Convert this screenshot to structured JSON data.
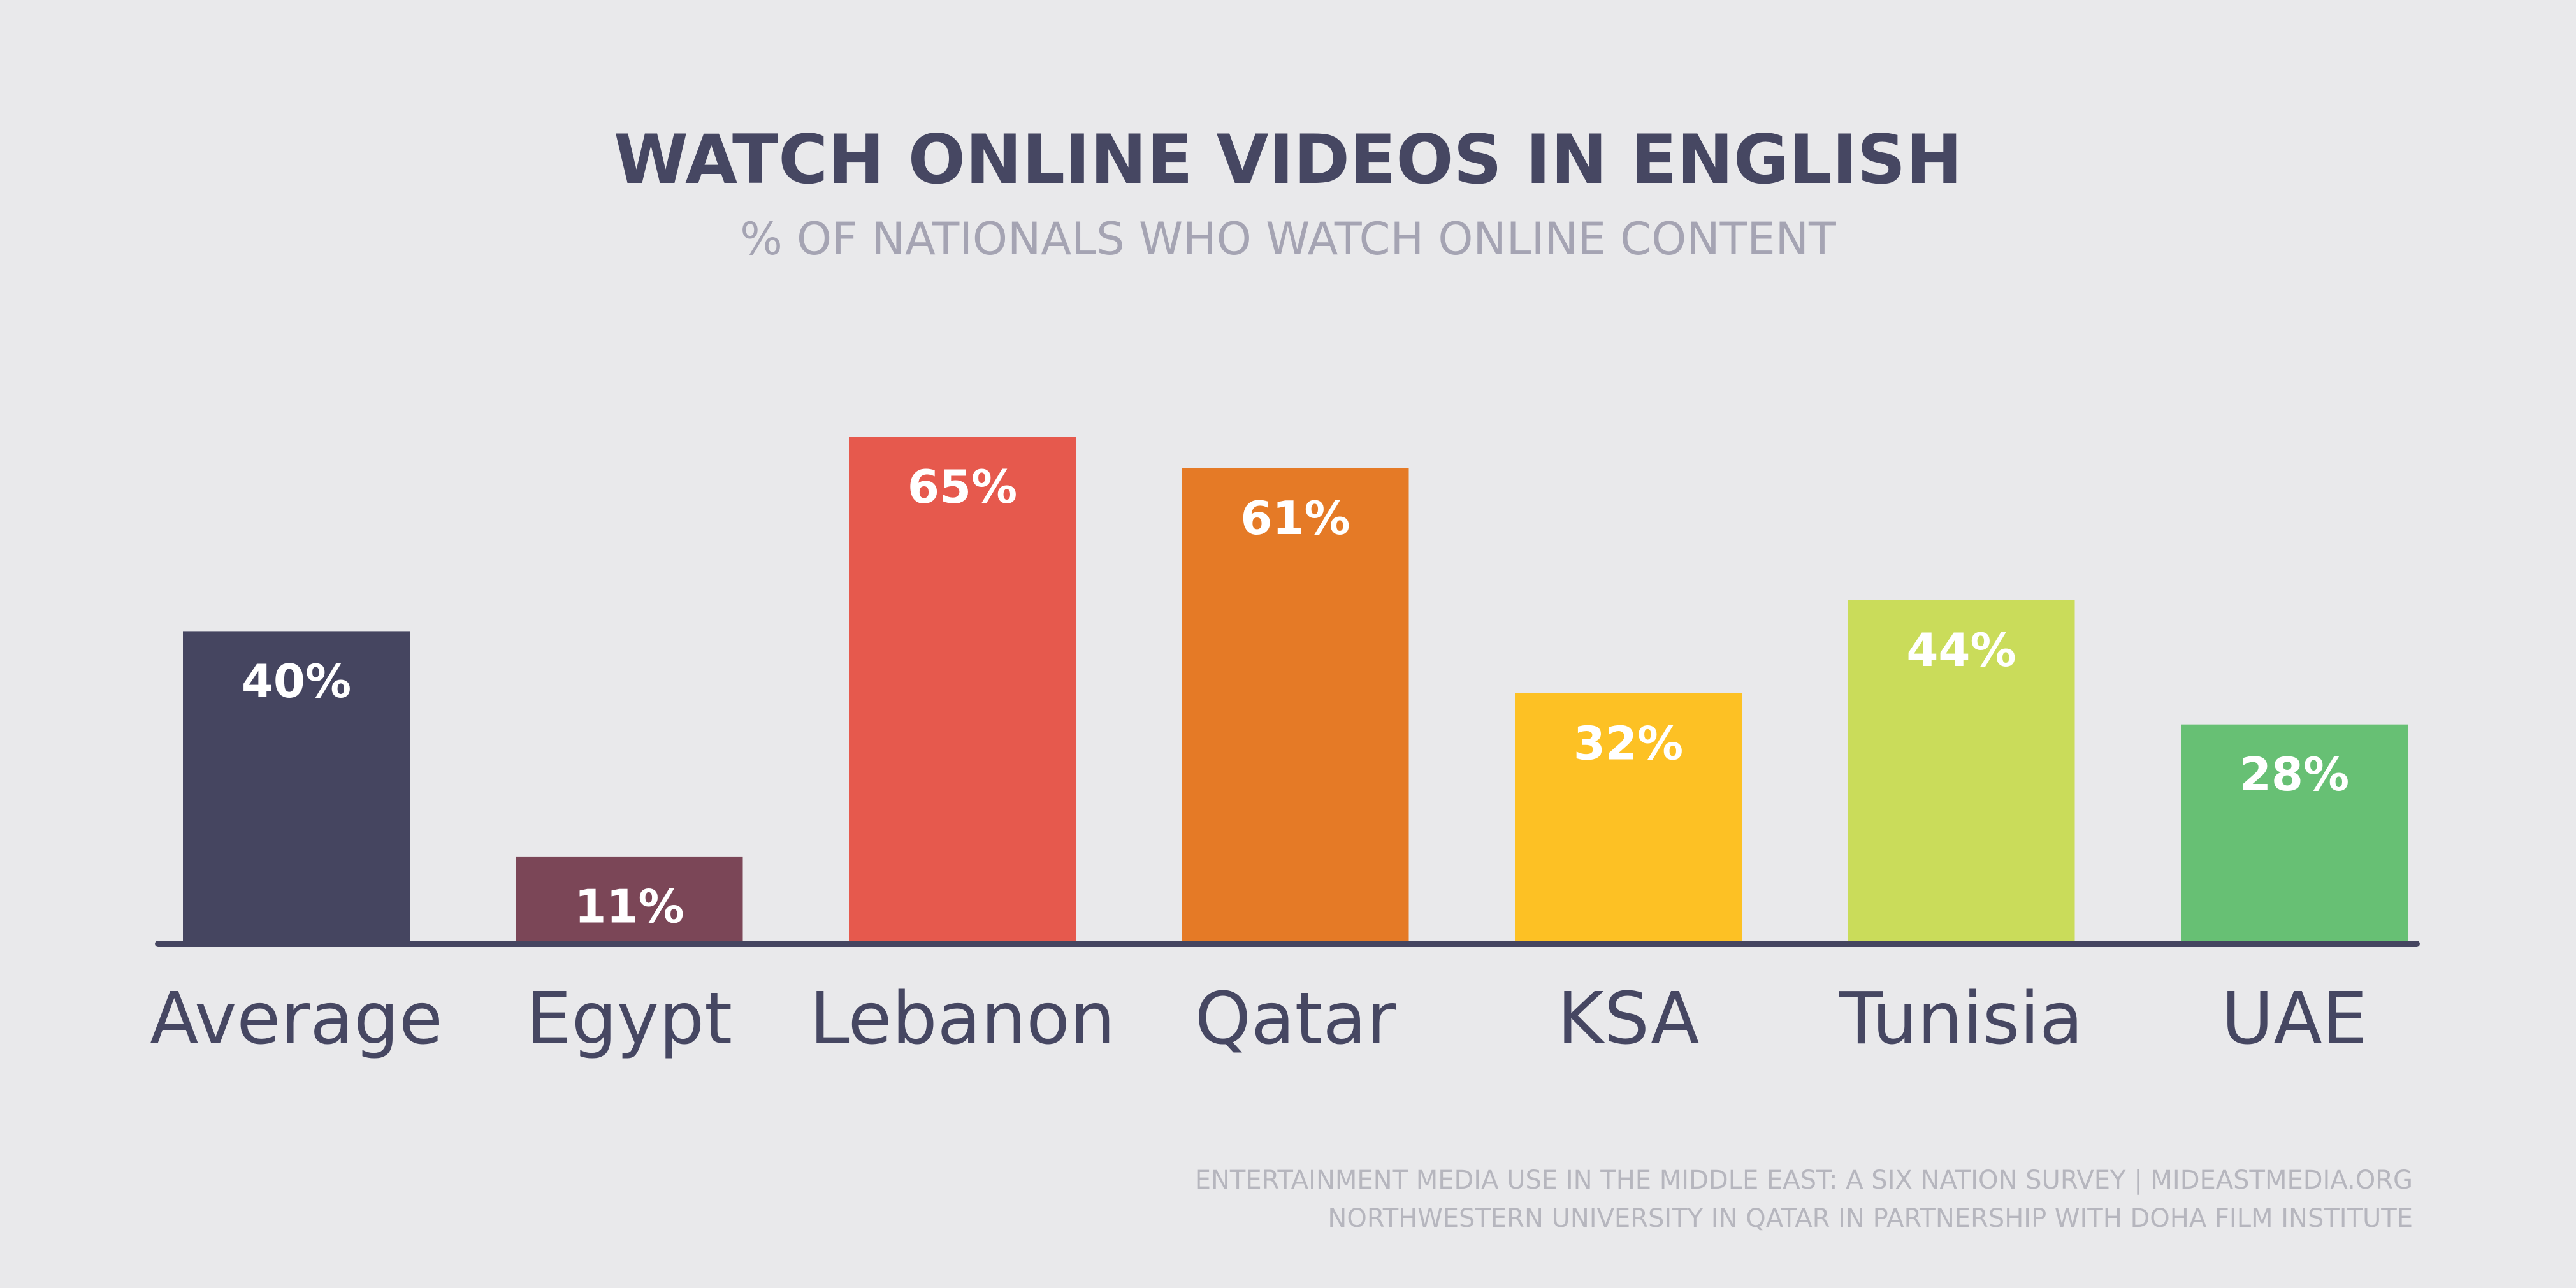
{
  "chart_data": {
    "type": "bar",
    "title": "WATCH ONLINE VIDEOS IN ENGLISH",
    "subtitle": "% OF NATIONALS WHO WATCH ONLINE CONTENT",
    "categories": [
      "Average",
      "Egypt",
      "Lebanon",
      "Qatar",
      "KSA",
      "Tunisia",
      "UAE"
    ],
    "values": [
      40,
      11,
      65,
      61,
      32,
      44,
      28
    ],
    "value_labels": [
      "40%",
      "11%",
      "65%",
      "61%",
      "32%",
      "44%",
      "28%"
    ],
    "colors": [
      "#454560",
      "#7b4657",
      "#e6594d",
      "#e57a26",
      "#fdc124",
      "#cadc5a",
      "#67c074"
    ],
    "source": [
      "ENTERTAINMENT MEDIA USE IN THE MIDDLE EAST: A SIX NATION SURVEY | MIDEASTMEDIA.ORG",
      "NORTHWESTERN UNIVERSITY IN QATAR IN PARTNERSHIP WITH DOHA FILM INSTITUTE"
    ]
  }
}
